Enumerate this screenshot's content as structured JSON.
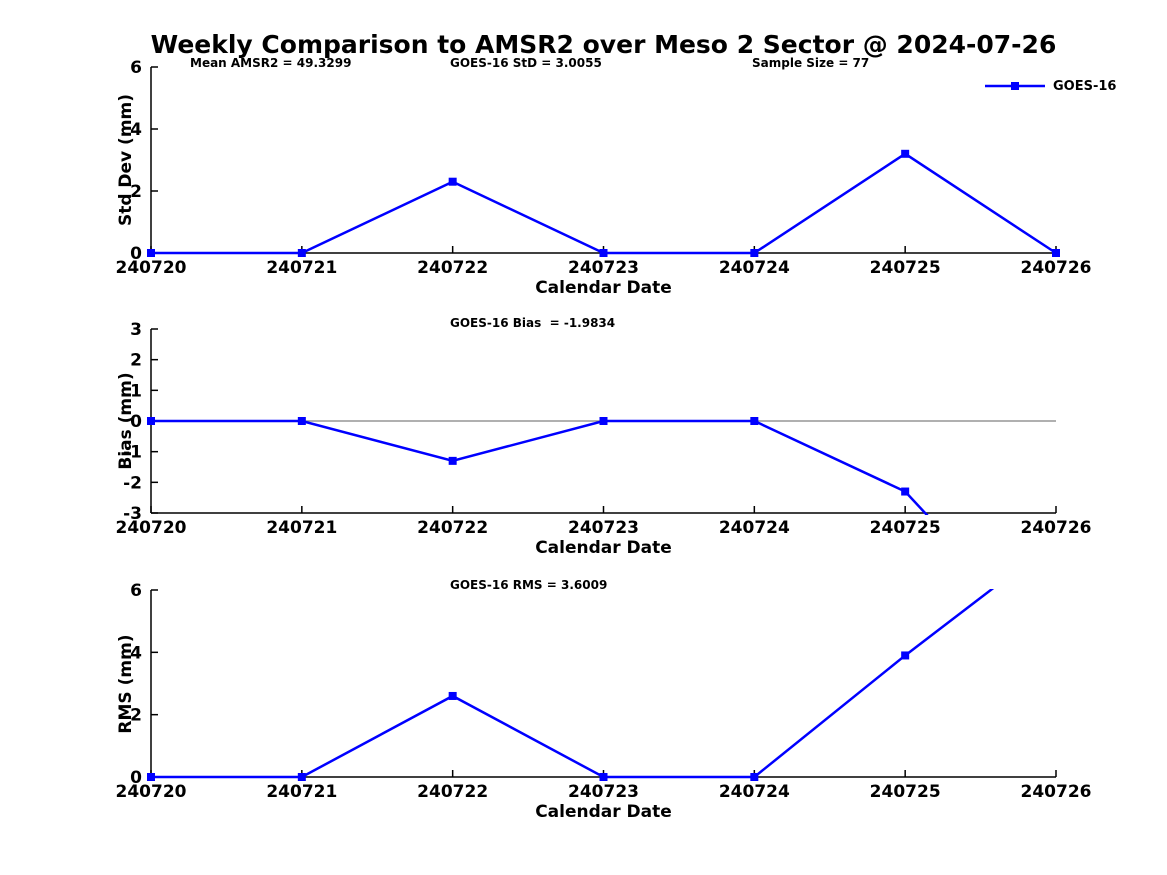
{
  "title": "Weekly Comparison to AMSR2 over Meso 2 Sector @ 2024-07-26",
  "colors": {
    "line": "#0000FF",
    "zero_line": "#808080",
    "axis": "#000000",
    "text": "#000000",
    "background": "#FFFFFF"
  },
  "legend": {
    "label": "GOES-16"
  },
  "stats": {
    "mean_amsr2": 49.3299,
    "goes16_std": 3.0055,
    "sample_size": 77,
    "goes16_bias": -1.9834,
    "goes16_rms": 3.6009
  },
  "chart_data": {
    "type": "line",
    "series_name": "GOES-16",
    "categories": [
      "240720",
      "240721",
      "240722",
      "240723",
      "240724",
      "240725",
      "240726"
    ],
    "xlabel": "Calendar Date",
    "legend_position": "top-right",
    "grid": false,
    "plots": [
      {
        "id": "stddev",
        "ylabel": "Std Dev (mm)",
        "ylim": [
          0,
          6
        ],
        "yticks": [
          0,
          2,
          4,
          6
        ],
        "values": [
          0,
          0,
          2.3,
          0,
          0,
          3.2,
          0
        ],
        "annotations": [
          {
            "text": "Mean AMSR2 = 49.3299"
          },
          {
            "text": "GOES-16 StD = 3.0055"
          },
          {
            "text": "Sample Size = 77"
          }
        ]
      },
      {
        "id": "bias",
        "ylabel": "Bias (mm)",
        "ylim": [
          -3,
          3
        ],
        "yticks": [
          -3,
          -2,
          -1,
          0,
          1,
          2,
          3
        ],
        "zero_line": true,
        "values": [
          0,
          0,
          -1.3,
          0,
          0,
          -2.3,
          -7.6
        ],
        "last_point_offscale": true,
        "annotations": [
          {
            "text": "GOES-16 Bias  = -1.9834"
          }
        ]
      },
      {
        "id": "rms",
        "ylabel": "RMS (mm)",
        "ylim": [
          0,
          6
        ],
        "yticks": [
          0,
          2,
          4,
          6
        ],
        "values": [
          0,
          0,
          2.6,
          0,
          0,
          3.9,
          7.6
        ],
        "last_point_offscale": true,
        "annotations": [
          {
            "text": "GOES-16 RMS = 3.6009"
          }
        ]
      }
    ]
  }
}
